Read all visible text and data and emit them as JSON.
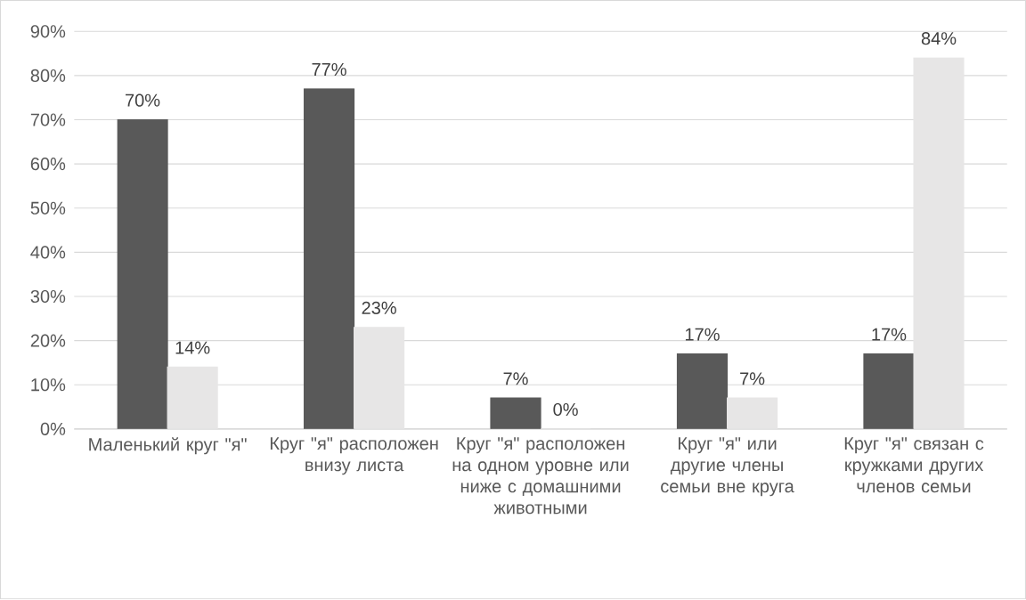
{
  "chart_data": {
    "type": "bar",
    "categories": [
      "Маленький круг \"я\"",
      "Круг \"я\" расположен внизу листа",
      "Круг \"я\" расположен на одном уровне или ниже с домашними животными",
      "Круг \"я\" или другие члены семьи вне круга",
      "Круг \"я\" связан с кружками других членов семьи"
    ],
    "series": [
      {
        "color": "#595959",
        "values": [
          70,
          77,
          7,
          17,
          17
        ],
        "value_labels": [
          "70%",
          "77%",
          "7%",
          "17%",
          "17%"
        ]
      },
      {
        "color": "#e7e6e6",
        "values": [
          14,
          23,
          0,
          7,
          84
        ],
        "value_labels": [
          "14%",
          "23%",
          "0%",
          "7%",
          "84%"
        ]
      }
    ],
    "ylim": [
      0,
      90
    ],
    "yticks": [
      {
        "value": 0,
        "label": "0%"
      },
      {
        "value": 10,
        "label": "10%"
      },
      {
        "value": 20,
        "label": "20%"
      },
      {
        "value": 30,
        "label": "30%"
      },
      {
        "value": 40,
        "label": "40%"
      },
      {
        "value": 50,
        "label": "50%"
      },
      {
        "value": 60,
        "label": "60%"
      },
      {
        "value": 70,
        "label": "70%"
      },
      {
        "value": 80,
        "label": "80%"
      },
      {
        "value": 90,
        "label": "90%"
      }
    ],
    "grid": "y"
  }
}
